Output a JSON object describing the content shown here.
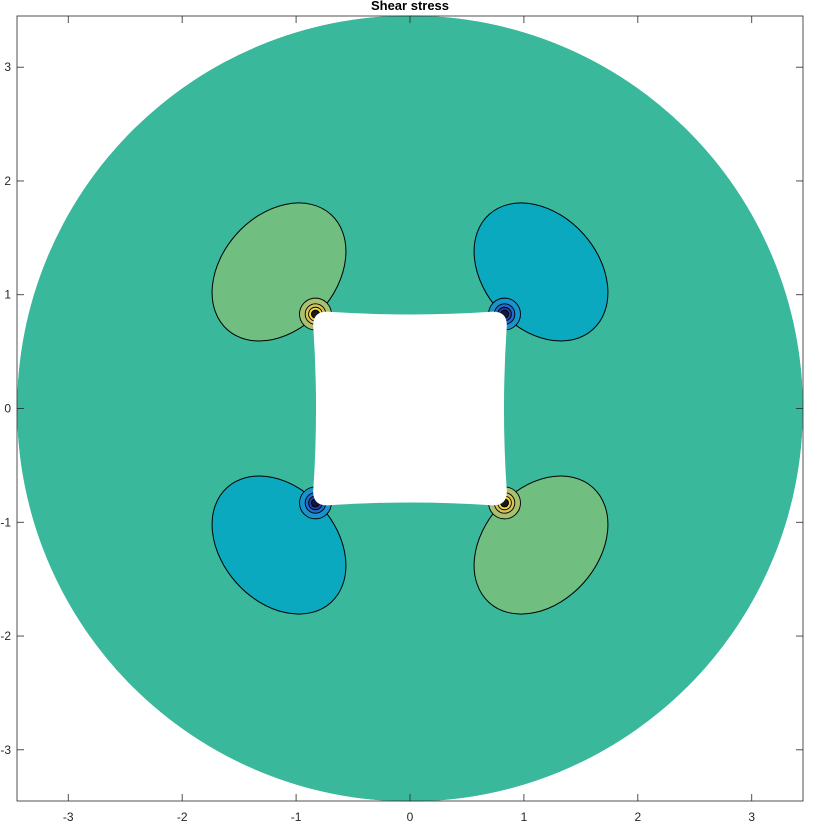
{
  "chart_data": {
    "type": "contour",
    "title": "Shear stress",
    "xlabel": "",
    "ylabel": "",
    "xlim": [
      -3.45,
      3.45
    ],
    "ylim": [
      -3.45,
      3.45
    ],
    "xticks": [
      -3,
      -2,
      -1,
      0,
      1,
      2,
      3
    ],
    "yticks": [
      -3,
      -2,
      -1,
      0,
      1,
      2,
      3
    ],
    "grid": false,
    "colorbar": false,
    "colors": {
      "background_level": "#3ab89c",
      "positive_lobe": "#71bf80",
      "negative_lobe": "#0aa9bf",
      "positive_ring_1": "#a8c070",
      "positive_ring_2": "#d6c35c",
      "positive_ring_3": "#f2d83a",
      "negative_ring_1": "#1894cc",
      "negative_ring_2": "#1a6fd0",
      "negative_ring_3": "#2a3fa0",
      "hole": "#ffffff",
      "contour_line": "#000000"
    },
    "domain": {
      "outer_shape": "circle",
      "center": [
        0,
        0
      ],
      "outer_radius": 3.45,
      "hole_shape": "rounded square",
      "hole_half_width": 0.85,
      "hole_corner_radius": 0.12
    },
    "lobes": [
      {
        "sign": "positive",
        "quadrant": "upper-left",
        "center": [
          -1.15,
          1.2
        ],
        "semi_axes": [
          0.68,
          0.5
        ],
        "angle_deg": -48,
        "corner": [
          -0.83,
          0.83
        ]
      },
      {
        "sign": "negative",
        "quadrant": "upper-right",
        "center": [
          1.15,
          1.2
        ],
        "semi_axes": [
          0.68,
          0.5
        ],
        "angle_deg": 48,
        "corner": [
          0.83,
          0.83
        ]
      },
      {
        "sign": "negative",
        "quadrant": "lower-left",
        "center": [
          -1.15,
          -1.2
        ],
        "semi_axes": [
          0.68,
          0.5
        ],
        "angle_deg": 48,
        "corner": [
          -0.83,
          -0.83
        ]
      },
      {
        "sign": "positive",
        "quadrant": "lower-right",
        "center": [
          1.15,
          -1.2
        ],
        "semi_axes": [
          0.68,
          0.5
        ],
        "angle_deg": -48,
        "corner": [
          0.83,
          -0.83
        ]
      }
    ],
    "corner_ring_radii": [
      0.14,
      0.09,
      0.06,
      0.035
    ]
  }
}
